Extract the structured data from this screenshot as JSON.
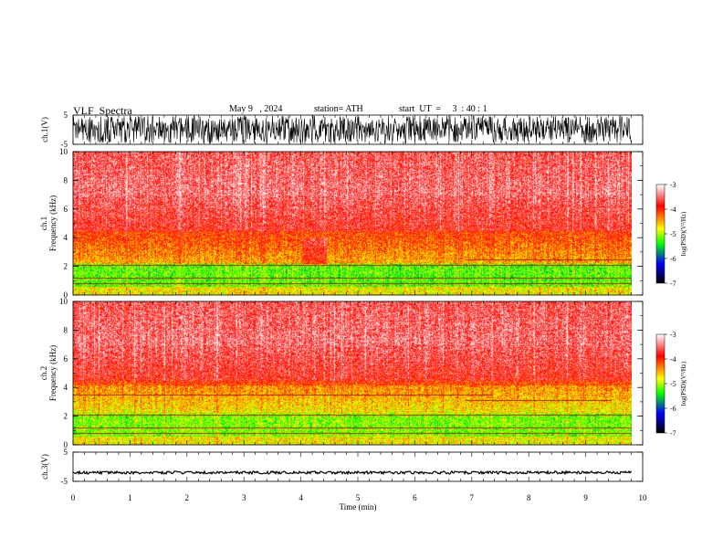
{
  "header": {
    "title": "VLF  Spectra",
    "date": "May 9   , 2024",
    "station": "station= ATH",
    "start": "start  UT  =     3  : 40 : 1"
  },
  "chart_data": [
    {
      "type": "line",
      "ylabel": "ch.1(V)",
      "ylim": [
        -5,
        5
      ],
      "yticks": [
        "5",
        "-5"
      ],
      "xlim": [
        0,
        10
      ],
      "description": "dense noisy waveform spanning nearly full range"
    },
    {
      "type": "heatmap",
      "ylabel": [
        "ch.1",
        "Frequency  (kHz)"
      ],
      "ylim": [
        0,
        10
      ],
      "yticks": [
        "0",
        "2",
        "4",
        "6",
        "8",
        "10"
      ],
      "xlim": [
        0,
        10
      ],
      "colorbar": {
        "label": "log(PSD)(V²/Hz)",
        "range": [
          -7,
          -3
        ],
        "ticks": [
          "-3",
          "-4",
          "-5",
          "-6",
          "-7"
        ]
      }
    },
    {
      "type": "heatmap",
      "ylabel": [
        "ch.2",
        "Frequency  (kHz)"
      ],
      "ylim": [
        0,
        10
      ],
      "yticks": [
        "0",
        "2",
        "4",
        "6",
        "8",
        "10"
      ],
      "xlim": [
        0,
        10
      ],
      "colorbar": {
        "label": "log(PSD)(V²/Hz)",
        "range": [
          -7,
          -3
        ],
        "ticks": [
          "-3",
          "-4",
          "-5",
          "-6",
          "-7"
        ]
      }
    },
    {
      "type": "line",
      "ylabel": "ch.3(V)",
      "ylim": [
        -5,
        5
      ],
      "yticks": [
        "5",
        "-5"
      ],
      "xlim": [
        0,
        10
      ],
      "xlabel": "Time  (min)",
      "xticks": [
        "0",
        "1",
        "2",
        "3",
        "4",
        "5",
        "6",
        "7",
        "8",
        "9",
        "10"
      ],
      "description": "flat trace near -2 V"
    }
  ],
  "colors": {
    "background": "#ffffff",
    "axis": "#000000",
    "spectrogram_stops": [
      "#000000",
      "#0000ff",
      "#00ff00",
      "#ffff00",
      "#ff0000",
      "#ffffff"
    ]
  }
}
